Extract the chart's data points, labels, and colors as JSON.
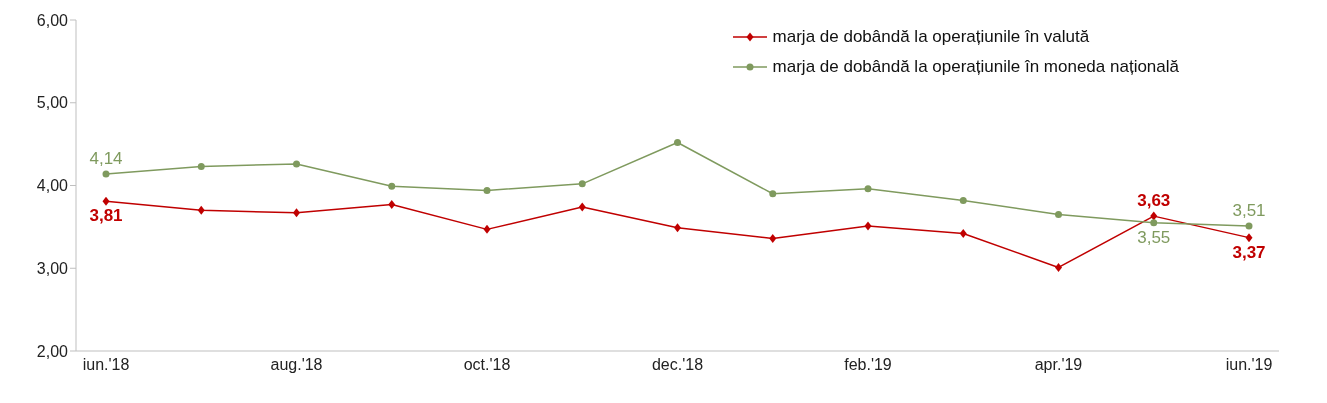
{
  "chart_data": {
    "type": "line",
    "categories": [
      "iun.'18",
      null,
      "aug.'18",
      null,
      "oct.'18",
      null,
      "dec.'18",
      null,
      "feb.'19",
      null,
      "apr.'19",
      null,
      "iun.'19"
    ],
    "series": [
      {
        "name": "marja de dobândă la operațiunile în valută",
        "color": "#c00000",
        "marker": "diamond",
        "values": [
          3.81,
          3.7,
          3.67,
          3.77,
          3.47,
          3.74,
          3.49,
          3.36,
          3.51,
          3.42,
          3.01,
          3.63,
          3.37
        ],
        "value_labels": [
          "3,81",
          null,
          null,
          null,
          null,
          null,
          null,
          null,
          null,
          null,
          null,
          "3,63",
          "3,37"
        ]
      },
      {
        "name": "marja de dobândă la operațiunile în moneda națională",
        "color": "#7f9a5e",
        "marker": "circle",
        "values": [
          4.14,
          4.23,
          4.26,
          3.99,
          3.94,
          4.02,
          4.52,
          3.9,
          3.96,
          3.82,
          3.65,
          3.55,
          3.51
        ],
        "value_labels": [
          "4,14",
          null,
          null,
          null,
          null,
          null,
          null,
          null,
          null,
          null,
          null,
          "3,55",
          "3,51"
        ]
      }
    ],
    "ylim": [
      2,
      6
    ],
    "yticks": [
      {
        "value": 2,
        "label": "2,00"
      },
      {
        "value": 3,
        "label": "3,00"
      },
      {
        "value": 4,
        "label": "4,00"
      },
      {
        "value": 5,
        "label": "5,00"
      },
      {
        "value": 6,
        "label": "6,00"
      }
    ],
    "grid": false,
    "legend": "top right",
    "line_style": "solid"
  }
}
